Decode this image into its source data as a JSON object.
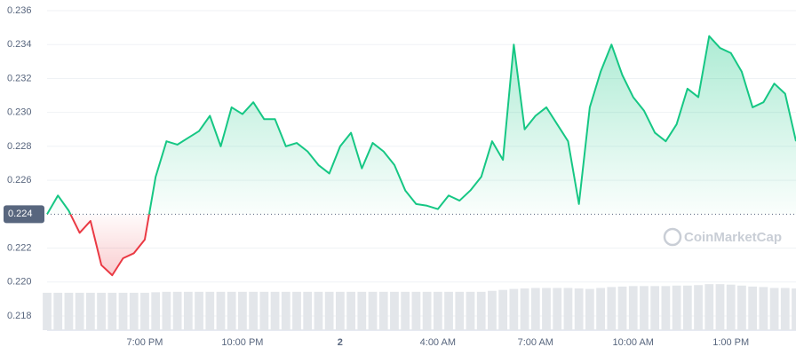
{
  "chart_data": {
    "type": "line",
    "watermark": "CoinMarketCap",
    "categories": [
      null,
      null,
      null,
      null,
      null,
      null,
      null,
      null,
      null,
      "7:00 PM",
      null,
      null,
      null,
      null,
      null,
      null,
      null,
      null,
      "10:00 PM",
      null,
      null,
      null,
      null,
      null,
      null,
      null,
      null,
      "2",
      null,
      null,
      null,
      null,
      null,
      null,
      null,
      null,
      "4:00 AM",
      null,
      null,
      null,
      null,
      null,
      null,
      null,
      null,
      "7:00 AM",
      null,
      null,
      null,
      null,
      null,
      null,
      null,
      null,
      "10:00 AM",
      null,
      null,
      null,
      null,
      null,
      null,
      null,
      null,
      "1:00 PM",
      null,
      null,
      null,
      null,
      null,
      null
    ],
    "values": [
      0.224,
      0.2251,
      0.2242,
      0.2229,
      0.2236,
      0.221,
      0.2204,
      0.2214,
      0.2217,
      0.2225,
      0.2262,
      0.2283,
      0.2281,
      0.2285,
      0.2289,
      0.2298,
      0.228,
      0.2303,
      0.2299,
      0.2306,
      0.2296,
      0.2296,
      0.228,
      0.2282,
      0.2277,
      0.2269,
      0.2264,
      0.228,
      0.2288,
      0.2267,
      0.2282,
      0.2277,
      0.2269,
      0.2254,
      0.2246,
      0.2245,
      0.2243,
      0.2251,
      0.2248,
      0.2254,
      0.2262,
      0.2283,
      0.2272,
      0.234,
      0.229,
      0.2298,
      0.2303,
      0.2293,
      0.2283,
      0.2246,
      0.2303,
      0.2324,
      0.234,
      0.2322,
      0.2309,
      0.2301,
      0.2288,
      0.2283,
      0.2293,
      0.2314,
      0.2309,
      0.2345,
      0.2338,
      0.2335,
      0.2324,
      0.2303,
      0.2306,
      0.2317,
      0.2311,
      0.2283
    ],
    "volume": [
      78,
      78,
      78,
      78,
      78,
      78,
      78,
      78,
      78,
      78,
      79,
      80,
      80,
      80,
      80,
      80,
      80,
      80,
      80,
      80,
      80,
      80,
      80,
      80,
      80,
      80,
      80,
      80,
      80,
      80,
      80,
      80,
      80,
      80,
      80,
      80,
      80,
      80,
      80,
      80,
      80,
      82,
      84,
      86,
      87,
      88,
      88,
      88,
      88,
      87,
      86,
      88,
      90,
      91,
      92,
      92,
      92,
      92,
      93,
      93,
      94,
      96,
      96,
      95,
      93,
      91,
      90,
      88,
      88,
      87
    ],
    "vlim": [
      0,
      100
    ],
    "reference": 0.224,
    "up_color": "#16c784",
    "down_color": "#ea3943",
    "ylim": [
      0.218,
      0.236
    ],
    "yticks": [
      0.218,
      {
        "value": 0.22,
        "label": "0.220"
      },
      0.222,
      0.226,
      0.228,
      {
        "value": 0.23,
        "label": "0.230"
      },
      0.232,
      0.234,
      0.236
    ],
    "grid": true
  }
}
